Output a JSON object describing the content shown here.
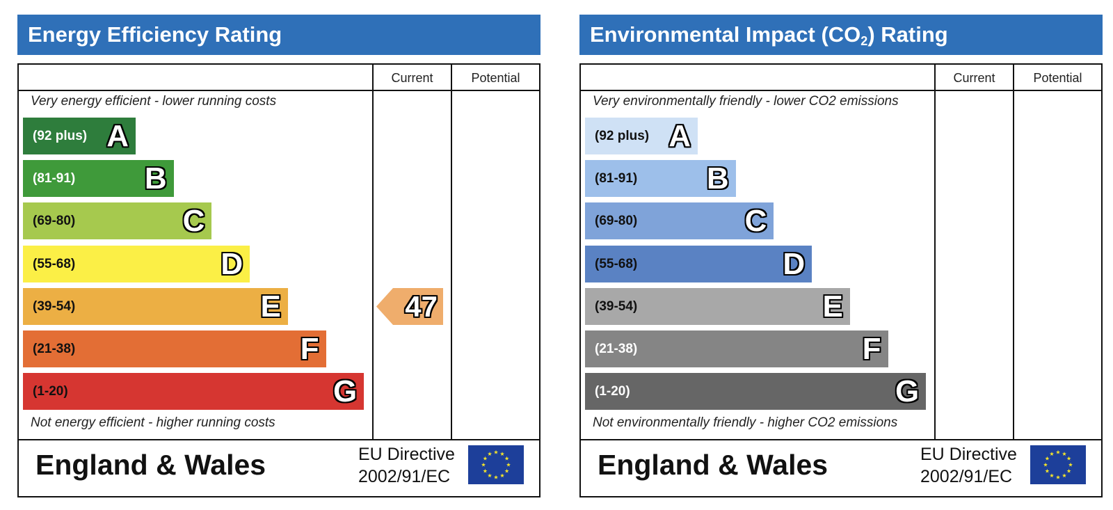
{
  "chart_data": [
    {
      "type": "bar",
      "title": "Energy Efficiency Rating",
      "columns": [
        "Current",
        "Potential"
      ],
      "top_note": "Very energy efficient - lower running costs",
      "bottom_note": "Not energy efficient - higher running costs",
      "categories": [
        "A",
        "B",
        "C",
        "D",
        "E",
        "F",
        "G"
      ],
      "bands": [
        {
          "letter": "A",
          "range": "(92 plus)",
          "color": "#2e7d3c",
          "text_color": "#ffffff"
        },
        {
          "letter": "B",
          "range": "(81-91)",
          "color": "#3f9a3a",
          "text_color": "#ffffff"
        },
        {
          "letter": "C",
          "range": "(69-80)",
          "color": "#a6c94e",
          "text_color": "#111111"
        },
        {
          "letter": "D",
          "range": "(55-68)",
          "color": "#fbef46",
          "text_color": "#111111"
        },
        {
          "letter": "E",
          "range": "(39-54)",
          "color": "#ecaf44",
          "text_color": "#111111"
        },
        {
          "letter": "F",
          "range": "(21-38)",
          "color": "#e36e35",
          "text_color": "#111111"
        },
        {
          "letter": "G",
          "range": "(1-20)",
          "color": "#d63631",
          "text_color": "#111111"
        }
      ],
      "current": {
        "value": 47,
        "band": "E",
        "color": "#efad6c"
      },
      "potential": null,
      "footer": {
        "country": "England & Wales",
        "directive_line1": "EU Directive",
        "directive_line2": "2002/91/EC"
      }
    },
    {
      "type": "bar",
      "title_main": "Environmental Impact (CO",
      "title_sub": "2",
      "title_end": ") Rating",
      "columns": [
        "Current",
        "Potential"
      ],
      "top_note": "Very environmentally friendly - lower CO2 emissions",
      "bottom_note": "Not environmentally friendly - higher CO2 emissions",
      "categories": [
        "A",
        "B",
        "C",
        "D",
        "E",
        "F",
        "G"
      ],
      "bands": [
        {
          "letter": "A",
          "range": "(92 plus)",
          "color": "#cfe1f5",
          "text_color": "#111111"
        },
        {
          "letter": "B",
          "range": "(81-91)",
          "color": "#9dbfea",
          "text_color": "#111111"
        },
        {
          "letter": "C",
          "range": "(69-80)",
          "color": "#7fa3d9",
          "text_color": "#111111"
        },
        {
          "letter": "D",
          "range": "(55-68)",
          "color": "#5a82c3",
          "text_color": "#111111"
        },
        {
          "letter": "E",
          "range": "(39-54)",
          "color": "#a8a8a8",
          "text_color": "#111111"
        },
        {
          "letter": "F",
          "range": "(21-38)",
          "color": "#858585",
          "text_color": "#ffffff"
        },
        {
          "letter": "G",
          "range": "(1-20)",
          "color": "#666666",
          "text_color": "#ffffff"
        }
      ],
      "current": null,
      "potential": null,
      "footer": {
        "country": "England & Wales",
        "directive_line1": "EU Directive",
        "directive_line2": "2002/91/EC"
      }
    }
  ],
  "colors": {
    "title_bar": "#2f70b8",
    "eu_flag_blue": "#1d3f9a",
    "eu_flag_stars": "#f5e52a"
  }
}
